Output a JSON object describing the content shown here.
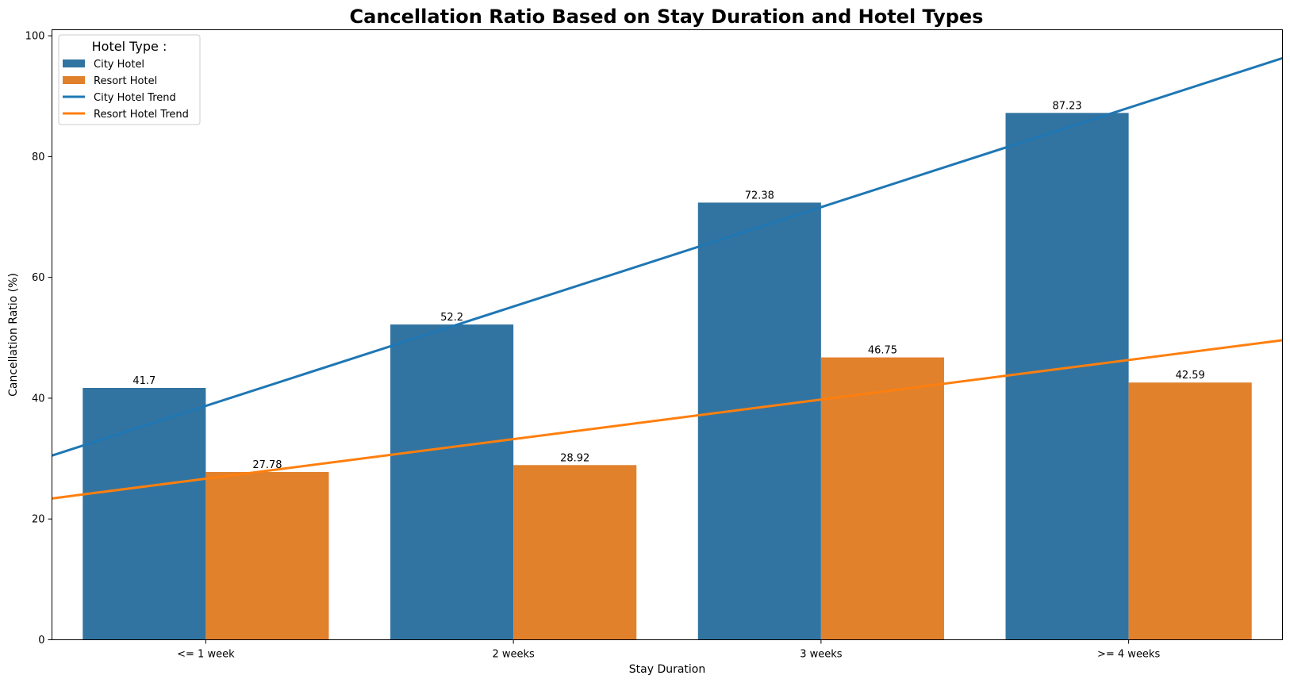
{
  "chart_data": {
    "type": "bar",
    "title": "Cancellation Ratio Based on Stay Duration and Hotel Types",
    "xlabel": "Stay Duration",
    "ylabel": "Cancellation Ratio (%)",
    "ylim": [
      0,
      101
    ],
    "yticks": [
      0,
      20,
      40,
      60,
      80,
      100
    ],
    "categories": [
      "<= 1 week",
      "2 weeks",
      "3 weeks",
      ">= 4 weeks"
    ],
    "series": [
      {
        "name": "City Hotel",
        "color": "#3274a1",
        "values": [
          41.7,
          52.2,
          72.38,
          87.23
        ],
        "labels": [
          "41.7",
          "52.2",
          "72.38",
          "87.23"
        ]
      },
      {
        "name": "Resort Hotel",
        "color": "#e1812c",
        "values": [
          27.78,
          28.92,
          46.75,
          42.59
        ],
        "labels": [
          "27.78",
          "28.92",
          "46.75",
          "42.59"
        ]
      }
    ],
    "trends": [
      {
        "name": "City Hotel Trend",
        "color": "#1f77b4",
        "x_range": [
          -0.5,
          3.5
        ],
        "y_range": [
          30.5,
          96.3
        ]
      },
      {
        "name": "Resort Hotel Trend",
        "color": "#ff7f0e",
        "x_range": [
          -0.5,
          3.5
        ],
        "y_range": [
          23.4,
          49.6
        ]
      }
    ],
    "legend": {
      "title": "Hotel Type :",
      "placement": "top-left"
    },
    "grid": false
  }
}
